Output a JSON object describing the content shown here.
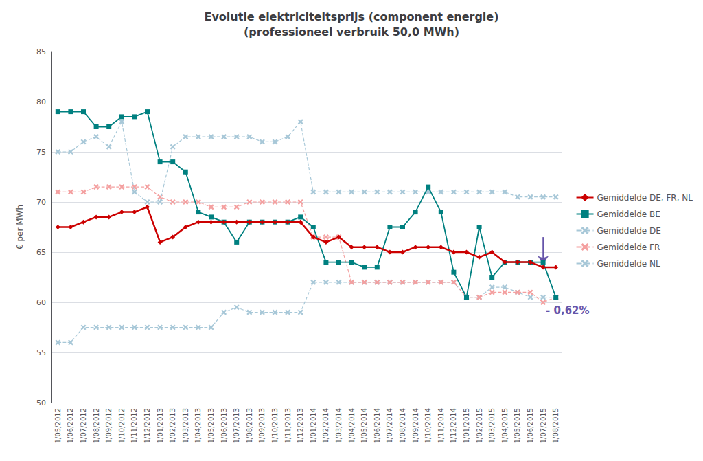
{
  "chart_data": {
    "type": "line",
    "title": "Evolutie elektriciteitsprijs (component energie)\n(professioneel verbruik 50,0 MWh)",
    "y_label": "€ per MWh",
    "categories": [
      "1/05/2012",
      "1/06/2012",
      "1/07/2012",
      "1/08/2012",
      "1/09/2012",
      "1/10/2012",
      "1/11/2012",
      "1/12/2012",
      "1/01/2013",
      "1/02/2013",
      "1/03/2013",
      "1/04/2013",
      "1/05/2013",
      "1/06/2013",
      "1/07/2013",
      "1/08/2013",
      "1/09/2013",
      "1/10/2013",
      "1/11/2013",
      "1/12/2013",
      "1/01/2014",
      "1/02/2014",
      "1/03/2014",
      "1/04/2014",
      "1/05/2014",
      "1/06/2014",
      "1/07/2014",
      "1/08/2014",
      "1/09/2014",
      "1/10/2014",
      "1/11/2014",
      "1/12/2014",
      "1/01/2015",
      "1/02/2015",
      "1/03/2015",
      "1/04/2015",
      "1/05/2015",
      "1/06/2015",
      "1/07/2015",
      "1/08/2015"
    ],
    "series": [
      {
        "name": "Gemiddelde DE, FR, NL",
        "color": "#CC0000",
        "marker": "diamond",
        "line_style": "solid",
        "values": [
          67.5,
          67.5,
          68.0,
          68.5,
          68.5,
          69.0,
          69.0,
          69.5,
          66.0,
          66.5,
          67.5,
          68.0,
          68.0,
          68.0,
          68.0,
          68.0,
          68.0,
          68.0,
          68.0,
          68.0,
          66.5,
          66.0,
          66.5,
          65.5,
          65.5,
          65.5,
          65.0,
          65.0,
          65.5,
          65.5,
          65.5,
          65.0,
          65.0,
          64.5,
          65.0,
          64.0,
          64.0,
          64.0,
          63.5,
          63.5
        ]
      },
      {
        "name": "Gemiddelde BE",
        "color": "#008080",
        "marker": "square",
        "line_style": "solid",
        "values": [
          79.0,
          79.0,
          79.0,
          77.5,
          77.5,
          78.5,
          78.5,
          79.0,
          74.0,
          74.0,
          73.0,
          69.0,
          68.5,
          68.0,
          66.0,
          68.0,
          68.0,
          68.0,
          68.0,
          68.5,
          67.5,
          64.0,
          64.0,
          64.0,
          63.5,
          63.5,
          67.5,
          67.5,
          69.0,
          71.5,
          69.0,
          63.0,
          60.5,
          67.5,
          62.5,
          64.0,
          64.0,
          64.0,
          64.0,
          60.5
        ]
      },
      {
        "name": "Gemiddelde DE",
        "color": "#A8C8D8",
        "marker": "x",
        "line_style": "dashed",
        "values": [
          75.0,
          75.0,
          76.0,
          76.5,
          75.5,
          78.0,
          71.0,
          70.0,
          70.0,
          75.5,
          76.5,
          76.5,
          76.5,
          76.5,
          76.5,
          76.5,
          76.0,
          76.0,
          76.5,
          78.0,
          71.0,
          71.0,
          71.0,
          71.0,
          71.0,
          71.0,
          71.0,
          71.0,
          71.0,
          71.0,
          71.0,
          71.0,
          71.0,
          71.0,
          71.0,
          71.0,
          70.5,
          70.5,
          70.5,
          70.5
        ]
      },
      {
        "name": "Gemiddelde FR",
        "color": "#F4A0A0",
        "marker": "x",
        "line_style": "dashed",
        "values": [
          71.0,
          71.0,
          71.0,
          71.5,
          71.5,
          71.5,
          71.5,
          71.5,
          70.5,
          70.0,
          70.0,
          70.0,
          69.5,
          69.5,
          69.5,
          70.0,
          70.0,
          70.0,
          70.0,
          70.0,
          66.5,
          66.5,
          66.5,
          62.0,
          62.0,
          62.0,
          62.0,
          62.0,
          62.0,
          62.0,
          62.0,
          62.0,
          60.5,
          60.5,
          61.0,
          61.0,
          61.0,
          61.0,
          60.0,
          60.5
        ]
      },
      {
        "name": "Gemiddelde NL",
        "color": "#A8C8D8",
        "marker": "x",
        "line_style": "dashed",
        "values": [
          56.0,
          56.0,
          57.5,
          57.5,
          57.5,
          57.5,
          57.5,
          57.5,
          57.5,
          57.5,
          57.5,
          57.5,
          57.5,
          59.0,
          59.5,
          59.0,
          59.0,
          59.0,
          59.0,
          59.0,
          62.0,
          62.0,
          62.0,
          62.0,
          62.0,
          62.0,
          62.0,
          62.0,
          62.0,
          62.0,
          62.0,
          62.0,
          60.5,
          60.5,
          61.5,
          61.5,
          61.0,
          60.5,
          60.5,
          60.5
        ]
      }
    ],
    "ylim": [
      50,
      85
    ],
    "yticks": [
      50,
      55,
      60,
      65,
      70,
      75,
      80,
      85
    ],
    "grid": true,
    "legend": "right",
    "annotations": [
      {
        "text": "- 0,62%",
        "x": "1/07/2015",
        "y": 59.2,
        "color": "#6655AA",
        "arrow": {
          "x": "1/07/2015",
          "from": 66.5,
          "to": 63.8
        }
      }
    ]
  }
}
